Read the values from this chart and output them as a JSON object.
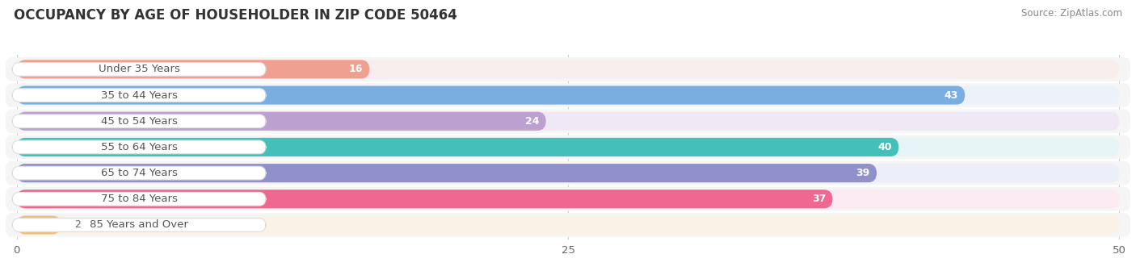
{
  "title": "OCCUPANCY BY AGE OF HOUSEHOLDER IN ZIP CODE 50464",
  "source": "Source: ZipAtlas.com",
  "categories": [
    "Under 35 Years",
    "35 to 44 Years",
    "45 to 54 Years",
    "55 to 64 Years",
    "65 to 74 Years",
    "75 to 84 Years",
    "85 Years and Over"
  ],
  "values": [
    16,
    43,
    24,
    40,
    39,
    37,
    2
  ],
  "bar_colors": [
    "#F0A090",
    "#7AAEE0",
    "#BBA0D0",
    "#45C0B8",
    "#9090CC",
    "#F06890",
    "#F0C080"
  ],
  "bg_colors": [
    "#F8EDED",
    "#ECF2FA",
    "#EFE8F5",
    "#E4F5F4",
    "#ECEEFA",
    "#FCEAF2",
    "#FAF2E4"
  ],
  "row_bg_color": "#F5F5F5",
  "xlim_min": 0,
  "xlim_max": 50,
  "xticks": [
    0,
    25,
    50
  ],
  "background_color": "#FFFFFF",
  "title_fontsize": 12,
  "label_fontsize": 9.5,
  "value_fontsize": 9,
  "value_inside_threshold": 5
}
